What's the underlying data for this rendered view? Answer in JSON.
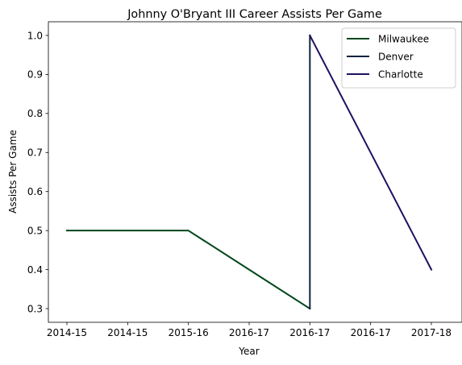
{
  "chart_data": {
    "type": "line",
    "title": "Johnny O'Bryant III Career Assists Per Game",
    "xlabel": "Year",
    "ylabel": "Assists Per Game",
    "categories": [
      "2014-15",
      "2014-15",
      "2015-16",
      "2016-17",
      "2016-17",
      "2016-17",
      "2017-18"
    ],
    "ylim": [
      0.265,
      1.035
    ],
    "yticks": [
      "0.3",
      "0.4",
      "0.5",
      "0.6",
      "0.7",
      "0.8",
      "0.9",
      "1.0"
    ],
    "grid": false,
    "legend_position": "upper right",
    "series": [
      {
        "name": "Milwaukee",
        "color": "#00471B",
        "points": [
          [
            0,
            0.5
          ],
          [
            1,
            0.5
          ],
          [
            2,
            0.5
          ],
          [
            3,
            0.4
          ],
          [
            4,
            0.3
          ]
        ]
      },
      {
        "name": "Denver",
        "color": "#0E2240",
        "points": [
          [
            4,
            0.3
          ],
          [
            4,
            1.0
          ]
        ]
      },
      {
        "name": "Charlotte",
        "color": "#1D1160",
        "points": [
          [
            4,
            1.0
          ],
          [
            5,
            0.7
          ],
          [
            6,
            0.4
          ]
        ]
      }
    ]
  }
}
